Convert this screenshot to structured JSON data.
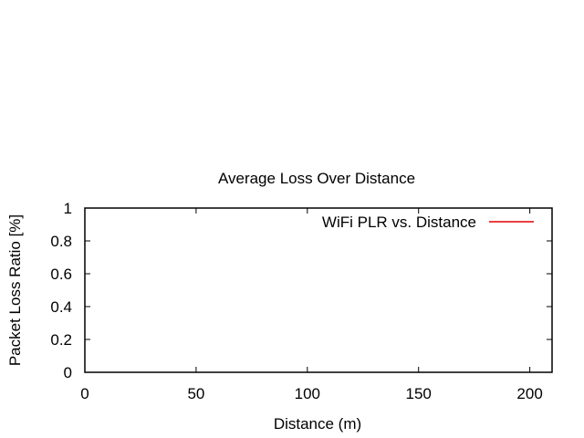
{
  "chart_data": {
    "type": "line",
    "title": "Average Loss Over Distance",
    "xlabel": "Distance (m)",
    "ylabel": "Packet Loss Ratio [%]",
    "xlim": [
      0,
      210
    ],
    "ylim": [
      0,
      1
    ],
    "x_ticks": [
      0,
      50,
      100,
      150,
      200
    ],
    "y_ticks": [
      0,
      0.2,
      0.4,
      0.6,
      0.8,
      1
    ],
    "grid": false,
    "legend_position": "top-right",
    "series": [
      {
        "name": "WiFi PLR vs. Distance",
        "color": "#e00000",
        "x": [],
        "y": []
      }
    ]
  }
}
